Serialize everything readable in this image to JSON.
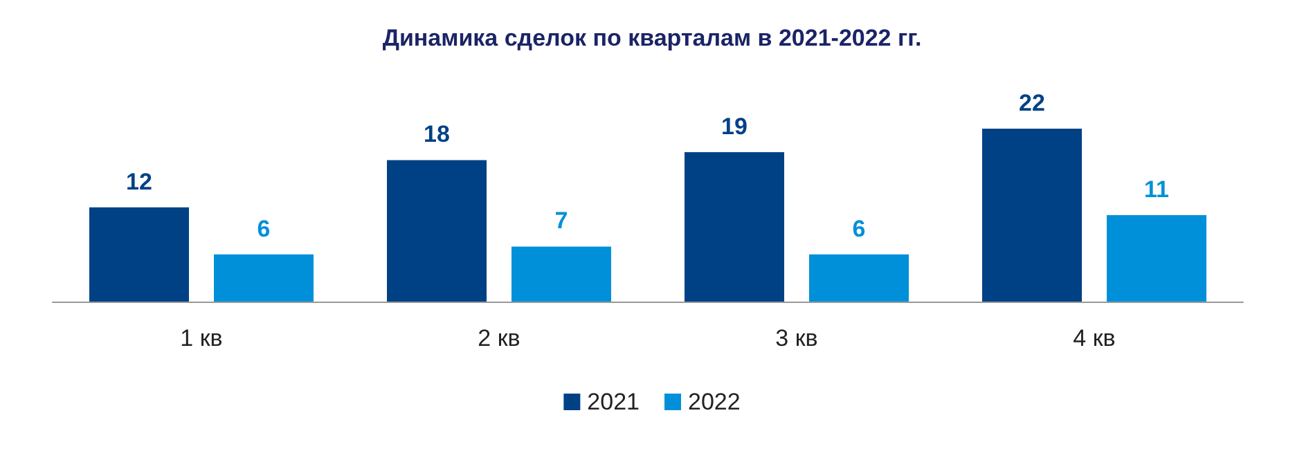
{
  "chart_data": {
    "type": "bar",
    "title": "Динамика сделок по кварталам в 2021-2022 гг.",
    "categories": [
      "1 кв",
      "2 кв",
      "3 кв",
      "4 кв"
    ],
    "series": [
      {
        "name": "2021",
        "color": "#004185",
        "values": [
          12,
          18,
          19,
          22
        ]
      },
      {
        "name": "2022",
        "color": "#0090d9",
        "values": [
          6,
          7,
          6,
          11
        ]
      }
    ],
    "data_labels": true,
    "legend": "bottom",
    "grid": false
  }
}
